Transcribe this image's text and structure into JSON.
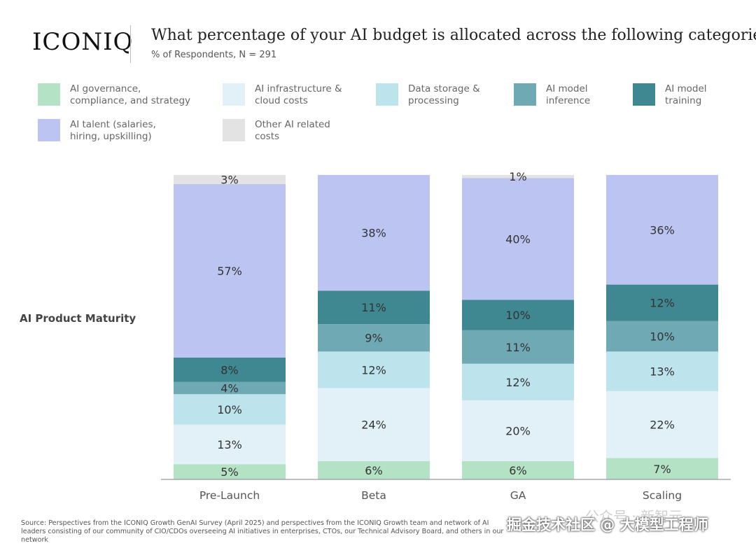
{
  "header": {
    "logo": "ICONIQ",
    "title": "What percentage of your AI budget is allocated across the following categories?",
    "subtitle": "% of Respondents, N = 291"
  },
  "legend": [
    {
      "label": "AI governance, compliance, and strategy",
      "color": "#b3e3c4"
    },
    {
      "label": "AI infrastructure & cloud costs",
      "color": "#e1f1f7"
    },
    {
      "label": "Data storage & processing",
      "color": "#bde4ec"
    },
    {
      "label": "AI model inference",
      "color": "#6ea9b4"
    },
    {
      "label": "AI model training",
      "color": "#3f8791"
    },
    {
      "label": "AI talent (salaries, hiring, upskilling)",
      "color": "#bcc4f2"
    },
    {
      "label": "Other AI related costs",
      "color": "#e3e3e3"
    }
  ],
  "side_label": "AI Product Maturity",
  "chart_data": {
    "type": "bar",
    "stacked": true,
    "ylim": [
      0,
      100
    ],
    "categories": [
      "Pre-Launch",
      "Beta",
      "GA",
      "Scaling"
    ],
    "series": [
      {
        "name": "AI governance, compliance, and strategy",
        "color": "#b3e3c4",
        "values": [
          5,
          6,
          6,
          7
        ]
      },
      {
        "name": "AI infrastructure & cloud costs",
        "color": "#e1f1f7",
        "values": [
          13,
          24,
          20,
          22
        ]
      },
      {
        "name": "Data storage & processing",
        "color": "#bde4ec",
        "values": [
          10,
          12,
          12,
          13
        ]
      },
      {
        "name": "AI model inference",
        "color": "#6ea9b4",
        "values": [
          4,
          9,
          11,
          10
        ]
      },
      {
        "name": "AI model training",
        "color": "#3f8791",
        "values": [
          8,
          11,
          10,
          12
        ]
      },
      {
        "name": "AI talent (salaries, hiring, upskilling)",
        "color": "#bcc4f2",
        "values": [
          57,
          38,
          40,
          36
        ]
      },
      {
        "name": "Other AI related costs",
        "color": "#e3e3e3",
        "values": [
          3,
          0,
          1,
          0
        ]
      }
    ]
  },
  "source": "Source: Perspectives from the ICONIQ Growth GenAI Survey (April 2025) and perspectives from the ICONIQ Growth team and network of AI leaders consisting of our community of CIO/CDOs overseeing AI initiatives in enterprises, CTOs, our Technical Advisory Board, and others in our network",
  "watermarks": [
    "公众号 · 新智元",
    "掘金技术社区 @ 大模型工程师"
  ]
}
